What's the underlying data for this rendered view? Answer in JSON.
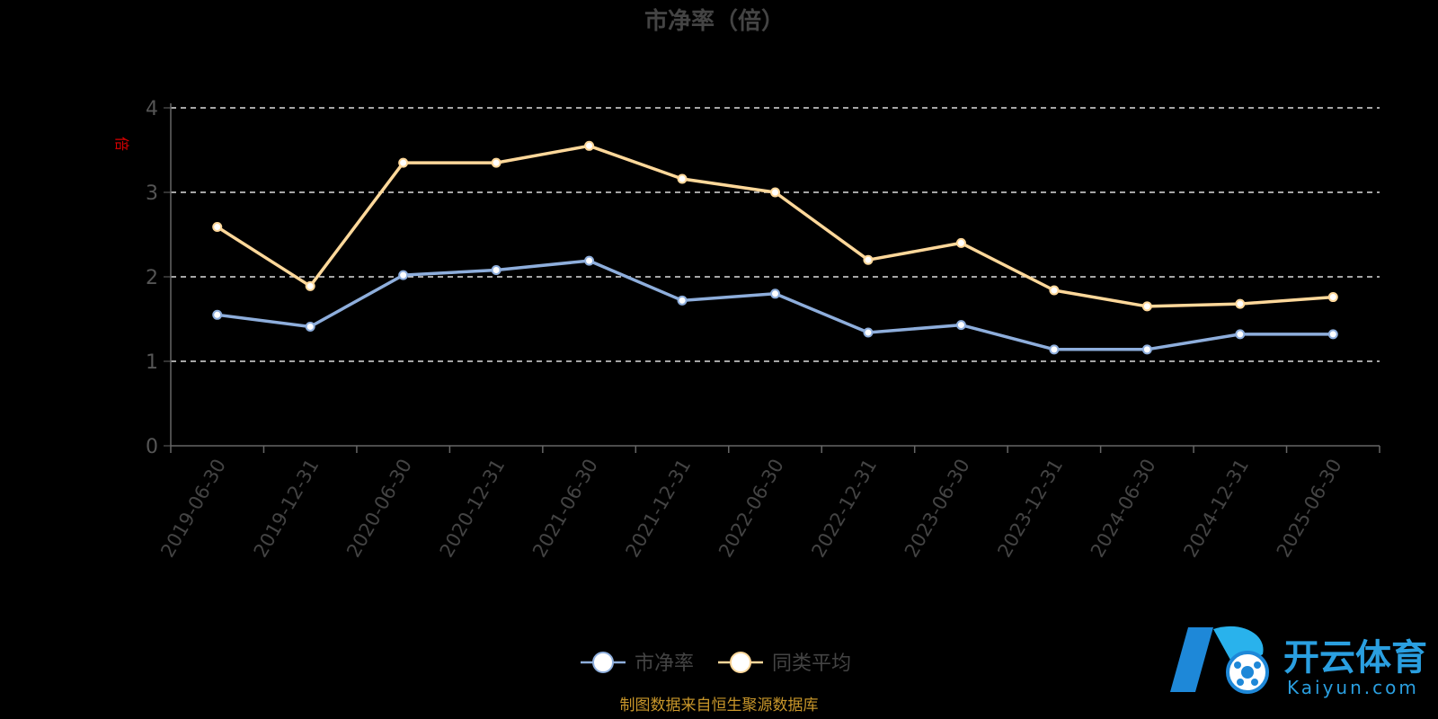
{
  "chart_data": {
    "type": "line",
    "title": "市净率（倍）",
    "ylabel": "倍",
    "xlabel": "",
    "ylim": [
      0,
      4
    ],
    "yticks": [
      0,
      1,
      2,
      3,
      4
    ],
    "grid": true,
    "legend_position": "bottom",
    "categories": [
      "2019-06-30",
      "2019-12-31",
      "2020-06-30",
      "2020-12-31",
      "2021-06-30",
      "2021-12-31",
      "2022-06-30",
      "2022-12-31",
      "2023-06-30",
      "2023-12-31",
      "2024-06-30",
      "2024-12-31",
      "2025-06-30"
    ],
    "series": [
      {
        "name": "市净率",
        "color": "#8eaedc",
        "values": [
          1.55,
          1.41,
          2.02,
          2.08,
          2.19,
          1.72,
          1.8,
          1.34,
          1.43,
          1.14,
          1.14,
          1.32,
          1.32
        ]
      },
      {
        "name": "同类平均",
        "color": "#ffd89a",
        "values": [
          2.59,
          1.89,
          3.35,
          3.35,
          3.55,
          3.16,
          3.0,
          2.2,
          2.4,
          1.84,
          1.65,
          1.68,
          1.76
        ]
      }
    ]
  },
  "source_note": "制图数据来自恒生聚源数据库",
  "watermark": {
    "main": "开云体育",
    "sub": "Kaiyun.com"
  }
}
